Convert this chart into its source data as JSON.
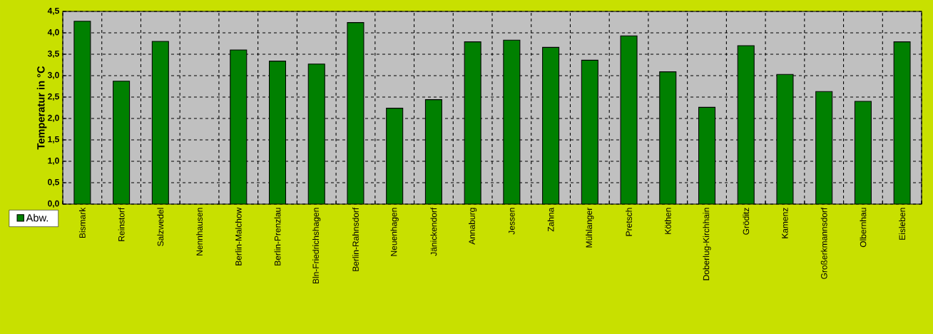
{
  "chart_data": {
    "type": "bar",
    "ylabel": "Temperatur in °C",
    "categories": [
      "Bismark",
      "Reinstorf",
      "Salzwedel",
      "Nennhausen",
      "Berlin-Malchow",
      "Berlin-Prenzlau",
      "Bln-Friedrichshagen",
      "Berlin-Rahnsdorf",
      "Neuenhagen",
      "Jänickendorf",
      "Annaburg",
      "Jessen",
      "Zahna",
      "Mühlanger",
      "Pretsch",
      "Köthen",
      "Doberlug-Kirchhain",
      "Gröditz",
      "Kamenz",
      "Großerkmannsdorf",
      "Olbernhau",
      "Eisleben"
    ],
    "series": [
      {
        "name": "Abw.",
        "color": "#008000",
        "values": [
          4.27,
          2.87,
          3.8,
          null,
          3.6,
          3.34,
          3.27,
          4.24,
          2.24,
          2.44,
          3.79,
          3.83,
          3.66,
          3.36,
          3.93,
          3.09,
          2.26,
          3.7,
          3.03,
          2.63,
          2.4,
          3.79
        ]
      }
    ],
    "ylim": [
      0,
      4.5
    ],
    "yticks": [
      {
        "value": 0,
        "label": "0,0"
      },
      {
        "value": 0.5,
        "label": "0,5"
      },
      {
        "value": 1,
        "label": "1,0"
      },
      {
        "value": 1.5,
        "label": "1,5"
      },
      {
        "value": 2,
        "label": "2,0"
      },
      {
        "value": 2.5,
        "label": "2,5"
      },
      {
        "value": 3,
        "label": "3,0"
      },
      {
        "value": 3.5,
        "label": "3,5"
      },
      {
        "value": 4,
        "label": "4,0"
      },
      {
        "value": 4.5,
        "label": "4,5"
      }
    ],
    "grid": true,
    "legend": "bottom left"
  }
}
